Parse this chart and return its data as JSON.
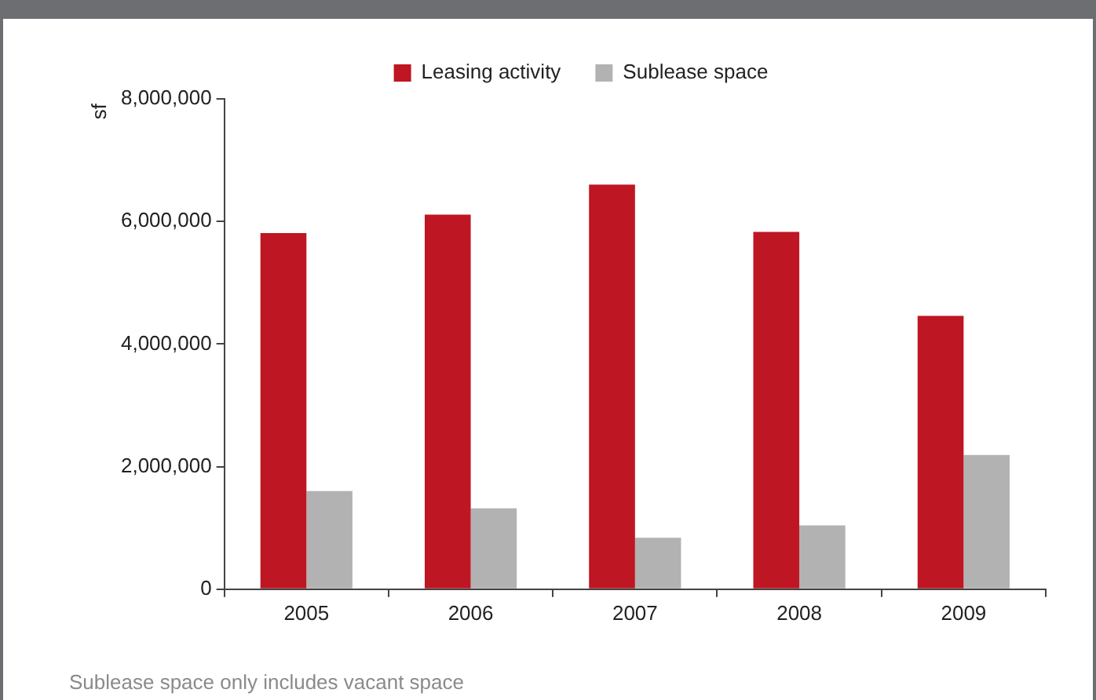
{
  "chart_data": {
    "type": "bar",
    "ylabel": "sf",
    "categories": [
      "2005",
      "2006",
      "2007",
      "2008",
      "2009"
    ],
    "series": [
      {
        "name": "Leasing activity",
        "color": "#be1622",
        "values": [
          5810000,
          6110000,
          6600000,
          5830000,
          4460000
        ]
      },
      {
        "name": "Sublease space",
        "color": "#b2b2b2",
        "values": [
          1600000,
          1320000,
          840000,
          1040000,
          2190000
        ]
      }
    ],
    "ylim": [
      0,
      8000000
    ],
    "yticks": [
      {
        "value": 0,
        "label": "0"
      },
      {
        "value": 2000000,
        "label": "2,000,000"
      },
      {
        "value": 4000000,
        "label": "4,000,000"
      },
      {
        "value": 6000000,
        "label": "6,000,000"
      },
      {
        "value": 8000000,
        "label": "8,000,000"
      }
    ],
    "grid": false,
    "legend": "top",
    "annotations": [
      "Sublease space only includes vacant space"
    ]
  }
}
